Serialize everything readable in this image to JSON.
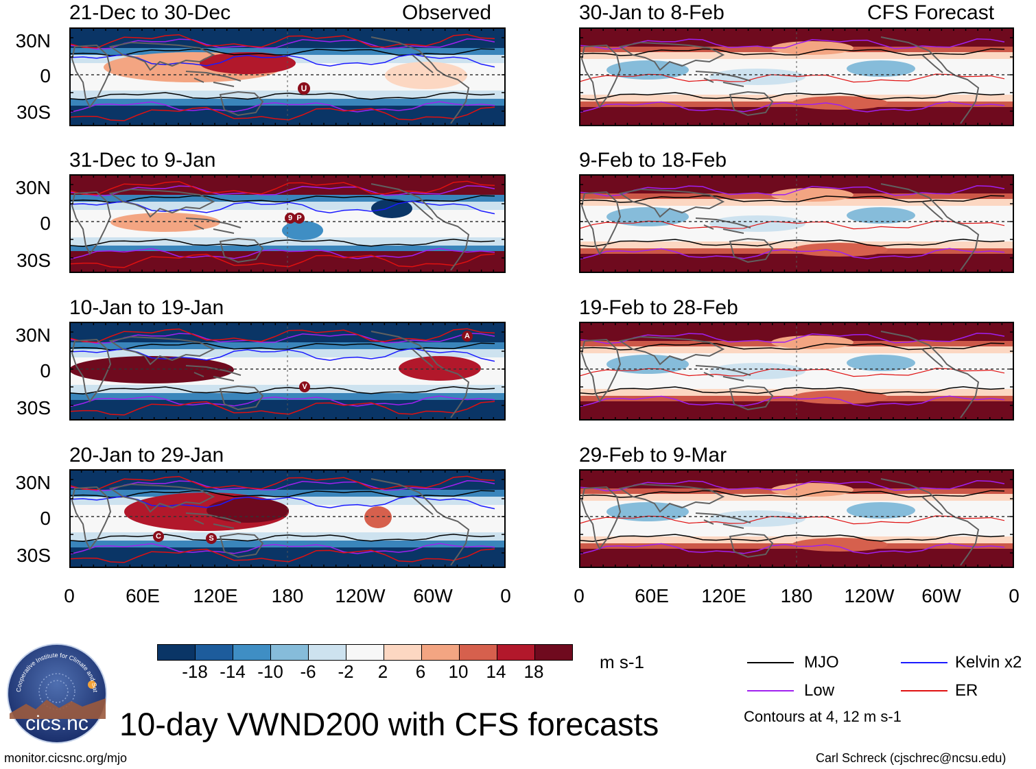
{
  "figure": {
    "title": "10-day VWND200 with CFS forecasts",
    "left_header": "Observed",
    "right_header": "CFS Forecast",
    "footer_left": "monitor.cicsnc.org/mjo",
    "footer_right": "Carl Schreck (cjschrec@ncsu.edu)",
    "logo_text": "cics.nc",
    "logo_ring_text": "Cooperative Institute for Climate and Satellites"
  },
  "axes": {
    "y_ticks": [
      "30N",
      "0",
      "30S"
    ],
    "x_ticks": [
      "0",
      "60E",
      "120E",
      "180",
      "120W",
      "60W",
      "0"
    ]
  },
  "panels_observed": [
    {
      "title": "21-Dec to 30-Dec"
    },
    {
      "title": "31-Dec to 9-Jan"
    },
    {
      "title": "10-Jan to 19-Jan"
    },
    {
      "title": "20-Jan to 29-Jan"
    }
  ],
  "panels_forecast": [
    {
      "title": "30-Jan to 8-Feb"
    },
    {
      "title": "9-Feb to 18-Feb"
    },
    {
      "title": "19-Feb to 28-Feb"
    },
    {
      "title": "29-Feb to 9-Mar"
    }
  ],
  "colorbar": {
    "unit": "m s-1",
    "labels": [
      "-18",
      "-14",
      "-10",
      "-6",
      "-2",
      "2",
      "6",
      "10",
      "14",
      "18"
    ],
    "colors": [
      "#0a3566",
      "#1d5c9c",
      "#3f8ec4",
      "#86bcda",
      "#cde2ef",
      "#f7f7f7",
      "#fcd7c2",
      "#f3a582",
      "#d6604d",
      "#b2182b",
      "#6f0a1e"
    ]
  },
  "legend": {
    "items": [
      {
        "label": "MJO",
        "color": "#000000"
      },
      {
        "label": "Kelvin x2",
        "color": "#1a1aff"
      },
      {
        "label": "Low",
        "color": "#a020f0"
      },
      {
        "label": "ER",
        "color": "#e01010"
      }
    ],
    "note": "Contours at 4, 12 m s-1"
  },
  "markers": [
    {
      "panel": "obs-1",
      "label": "U"
    },
    {
      "panel": "obs-2",
      "label": "9"
    },
    {
      "panel": "obs-2",
      "label": "P"
    },
    {
      "panel": "obs-3",
      "label": "A"
    },
    {
      "panel": "obs-3",
      "label": "V"
    },
    {
      "panel": "obs-4",
      "label": "C"
    },
    {
      "panel": "obs-4",
      "label": "S"
    }
  ]
}
